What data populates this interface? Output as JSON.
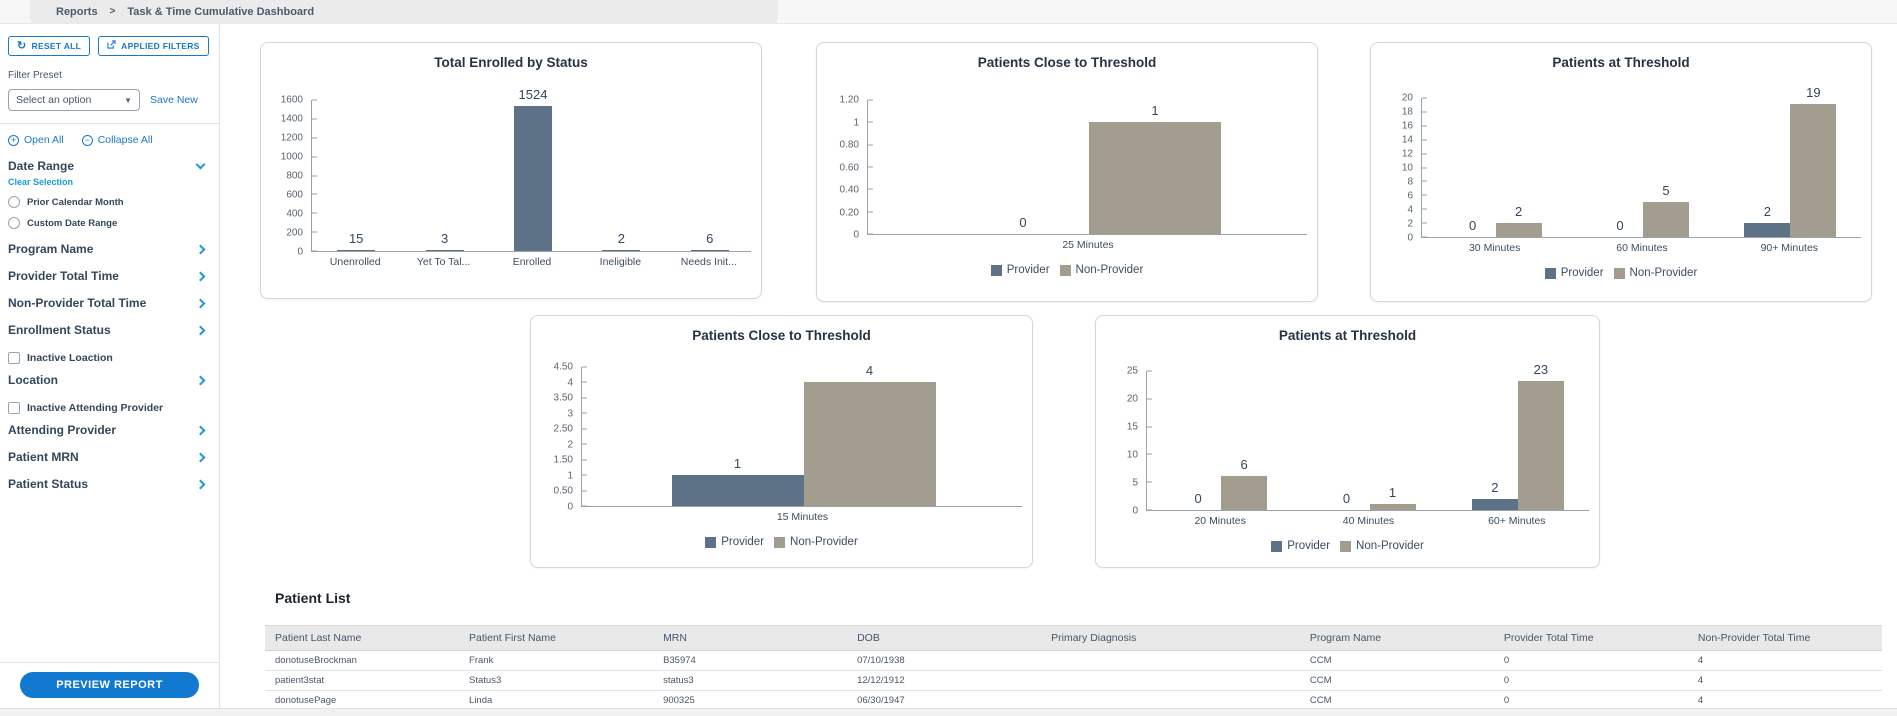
{
  "breadcrumb": {
    "items": [
      "Reports",
      "Task & Time Cumulative Dashboard"
    ],
    "separator": ">"
  },
  "sidebar": {
    "reset_button": "RESET ALL",
    "applied_filters_button": "APPLIED FILTERS",
    "filter_preset_label": "Filter Preset",
    "preset_select_value": "Select an option",
    "save_new_link": "Save New",
    "open_all": "Open All",
    "collapse_all": "Collapse All",
    "date_range": {
      "label": "Date Range",
      "clear": "Clear Selection",
      "options": [
        "Prior Calendar Month",
        "Custom Date Range"
      ]
    },
    "sections": [
      "Program Name",
      "Provider Total Time",
      "Non-Provider Total Time",
      "Enrollment Status"
    ],
    "inactive_location_checkbox": "Inactive Loaction",
    "location_section": "Location",
    "inactive_attending_checkbox": "Inactive Attending Provider",
    "sections2": [
      "Attending Provider",
      "Patient MRN",
      "Patient Status"
    ],
    "preview_button": "PREVIEW REPORT"
  },
  "colors": {
    "provider": "#5d7187",
    "non_provider": "#a29d8f",
    "accent_blue": "#1279d0",
    "link_blue": "#1878c8",
    "chevron_blue": "#1b9ad8"
  },
  "chart_data": [
    {
      "type": "bar",
      "title": "Total Enrolled by Status",
      "categories": [
        "Unenrolled",
        "Yet To Tal...",
        "Enrolled",
        "Ineligible",
        "Needs Init..."
      ],
      "series": [
        {
          "name": "",
          "color": "#5d7187",
          "values": [
            15,
            3,
            1524,
            2,
            6
          ]
        }
      ],
      "ylim": [
        0,
        1600
      ],
      "yticks": [
        "1600",
        "1400",
        "1200",
        "1000",
        "800",
        "600",
        "400",
        "200",
        "0"
      ],
      "legend": null,
      "grid": false,
      "legend_position": "none"
    },
    {
      "type": "bar",
      "title": "Patients Close to Threshold",
      "categories": [
        "25 Minutes"
      ],
      "series": [
        {
          "name": "Provider",
          "color": "#5d7187",
          "values": [
            0
          ]
        },
        {
          "name": "Non-Provider",
          "color": "#a29d8f",
          "values": [
            1
          ]
        }
      ],
      "ylim": [
        0,
        1.2
      ],
      "yticks": [
        "1.20",
        "1",
        "0.80",
        "0.60",
        "0.40",
        "0.20",
        "0"
      ],
      "legend": [
        "Provider",
        "Non-Provider"
      ],
      "grid": false,
      "legend_position": "bottom"
    },
    {
      "type": "bar",
      "title": "Patients at Threshold",
      "categories": [
        "30 Minutes",
        "60 Minutes",
        "90+ Minutes"
      ],
      "series": [
        {
          "name": "Provider",
          "color": "#5d7187",
          "values": [
            0,
            0,
            2
          ]
        },
        {
          "name": "Non-Provider",
          "color": "#a29d8f",
          "values": [
            2,
            5,
            19
          ]
        }
      ],
      "ylim": [
        0,
        20
      ],
      "yticks": [
        "20",
        "18",
        "16",
        "14",
        "12",
        "10",
        "8",
        "6",
        "4",
        "2",
        "0"
      ],
      "legend": [
        "Provider",
        "Non-Provider"
      ],
      "grid": false,
      "legend_position": "bottom"
    },
    {
      "type": "bar",
      "title": "Patients Close to Threshold",
      "categories": [
        "15 Minutes"
      ],
      "series": [
        {
          "name": "Provider",
          "color": "#5d7187",
          "values": [
            1
          ]
        },
        {
          "name": "Non-Provider",
          "color": "#a29d8f",
          "values": [
            4
          ]
        }
      ],
      "ylim": [
        0,
        4.5
      ],
      "yticks": [
        "4.50",
        "4",
        "3.50",
        "3",
        "2.50",
        "2",
        "1.50",
        "1",
        "0.50",
        "0"
      ],
      "legend": [
        "Provider",
        "Non-Provider"
      ],
      "grid": false,
      "legend_position": "bottom"
    },
    {
      "type": "bar",
      "title": "Patients at Threshold",
      "categories": [
        "20 Minutes",
        "40 Minutes",
        "60+ Minutes"
      ],
      "series": [
        {
          "name": "Provider",
          "color": "#5d7187",
          "values": [
            0,
            0,
            2
          ]
        },
        {
          "name": "Non-Provider",
          "color": "#a29d8f",
          "values": [
            6,
            1,
            23
          ]
        }
      ],
      "ylim": [
        0,
        25
      ],
      "yticks": [
        "25",
        "20",
        "15",
        "10",
        "5",
        "0"
      ],
      "legend": [
        "Provider",
        "Non-Provider"
      ],
      "grid": false,
      "legend_position": "bottom"
    }
  ],
  "patient_list": {
    "title": "Patient List",
    "columns": [
      "Patient Last Name",
      "Patient First Name",
      "MRN",
      "DOB",
      "Primary Diagnosis",
      "Program Name",
      "Provider Total Time",
      "Non-Provider Total Time"
    ],
    "rows": [
      [
        "donotuseBrockman",
        "Frank",
        "B35974",
        "07/10/1938",
        "",
        "CCM",
        "0",
        "4"
      ],
      [
        "patient3stat",
        "Status3",
        "status3",
        "12/12/1912",
        "",
        "CCM",
        "0",
        "4"
      ],
      [
        "donotusePage",
        "Linda",
        "900325",
        "06/30/1947",
        "",
        "CCM",
        "0",
        "4"
      ]
    ]
  }
}
